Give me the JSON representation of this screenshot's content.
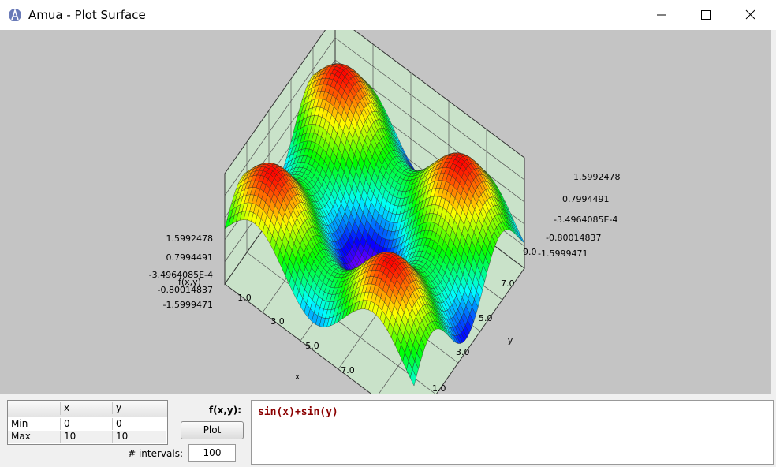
{
  "window": {
    "title": "Amua - Plot Surface"
  },
  "plot": {
    "z_axis_label": "f(x,y)",
    "x_axis_label": "x",
    "y_axis_label": "y",
    "z_ticks_left": [
      "1.5992478",
      "0.7994491",
      "-3.4964085E-4",
      "-0.80014837",
      "-1.5999471"
    ],
    "z_ticks_right": [
      "1.5992478",
      "0.7994491",
      "-3.4964085E-4",
      "-0.80014837",
      "-1.5999471"
    ],
    "x_ticks": [
      "1.0",
      "3.0",
      "5.0",
      "7.0"
    ],
    "y_ticks": [
      "9.0",
      "7.0",
      "5.0",
      "3.0",
      "1.0"
    ]
  },
  "range_table": {
    "header": [
      "x",
      "y"
    ],
    "rows": [
      [
        "Min",
        "0",
        "0"
      ],
      [
        "Max",
        "10",
        "10"
      ]
    ]
  },
  "function_label": "f(x,y):",
  "plot_button": "Plot",
  "intervals_label": "# intervals:",
  "intervals": "100",
  "expression": "sin(x)+sin(y)"
}
